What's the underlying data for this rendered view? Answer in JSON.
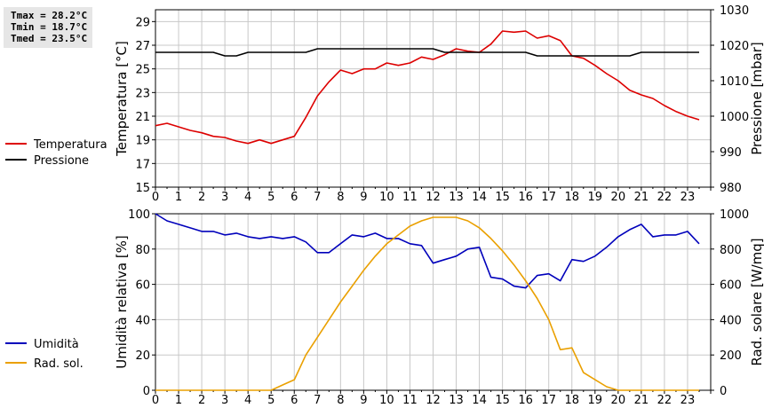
{
  "stats": {
    "tmax": "Tmax = 28.2°C",
    "tmin": "Tmin = 18.7°C",
    "tmed": "Tmed = 23.5°C"
  },
  "colors": {
    "temperature": "#dd0000",
    "pressure": "#000000",
    "humidity": "#0000bb",
    "radiation": "#eaa000",
    "grid": "#c8c8c8"
  },
  "chart_data": [
    {
      "type": "line",
      "x_ticks": [
        "0",
        "1",
        "2",
        "3",
        "4",
        "5",
        "6",
        "7",
        "8",
        "9",
        "10",
        "11",
        "12",
        "13",
        "14",
        "15",
        "16",
        "17",
        "18",
        "19",
        "20",
        "21",
        "22",
        "23"
      ],
      "xlim": [
        0,
        24
      ],
      "y_left": {
        "label": "Temperatura [°C]",
        "ticks": [
          "15",
          "17",
          "19",
          "21",
          "23",
          "25",
          "27",
          "29"
        ],
        "range": [
          15,
          30
        ]
      },
      "y_right": {
        "label": "Pressione [mbar]",
        "ticks": [
          "980",
          "990",
          "1000",
          "1010",
          "1020",
          "1030"
        ],
        "range": [
          980,
          1030
        ]
      },
      "grid": true,
      "legend_position": "left",
      "series": [
        {
          "name": "Temperatura",
          "axis": "left",
          "x": [
            0,
            0.5,
            1,
            1.5,
            2,
            2.5,
            3,
            3.5,
            4,
            4.5,
            5,
            5.5,
            6,
            6.5,
            7,
            7.5,
            8,
            8.5,
            9,
            9.5,
            10,
            10.5,
            11,
            11.5,
            12,
            12.5,
            13,
            13.5,
            14,
            14.5,
            15,
            15.5,
            16,
            16.5,
            17,
            17.5,
            18,
            18.5,
            19,
            19.5,
            20,
            20.5,
            21,
            21.5,
            22,
            22.5,
            23,
            23.5
          ],
          "y": [
            20.2,
            20.4,
            20.1,
            19.8,
            19.6,
            19.3,
            19.2,
            18.9,
            18.7,
            19.0,
            18.7,
            19.0,
            19.3,
            20.9,
            22.7,
            23.9,
            24.9,
            24.6,
            25.0,
            25.0,
            25.5,
            25.3,
            25.5,
            26.0,
            25.8,
            26.2,
            26.7,
            26.5,
            26.4,
            27.1,
            28.2,
            28.1,
            28.2,
            27.6,
            27.8,
            27.4,
            26.1,
            25.9,
            25.3,
            24.6,
            24.0,
            23.2,
            22.8,
            22.5,
            21.9,
            21.4,
            21.0,
            20.7
          ]
        },
        {
          "name": "Pressione",
          "axis": "right",
          "x": [
            0,
            1,
            2,
            2.5,
            3,
            3.5,
            4,
            5,
            6,
            6.5,
            7,
            8,
            9,
            10,
            11,
            12,
            12.5,
            13,
            14,
            15,
            16,
            16.5,
            17,
            18,
            19,
            20,
            20.5,
            21,
            22,
            23,
            23.5
          ],
          "y": [
            1018,
            1018,
            1018,
            1018,
            1017,
            1017,
            1018,
            1018,
            1018,
            1018,
            1019,
            1019,
            1019,
            1019,
            1019,
            1019,
            1018,
            1018,
            1018,
            1018,
            1018,
            1017,
            1017,
            1017,
            1017,
            1017,
            1017,
            1018,
            1018,
            1018,
            1018
          ]
        }
      ]
    },
    {
      "type": "line",
      "x_ticks": [
        "0",
        "1",
        "2",
        "3",
        "4",
        "5",
        "6",
        "7",
        "8",
        "9",
        "10",
        "11",
        "12",
        "13",
        "14",
        "15",
        "16",
        "17",
        "18",
        "19",
        "20",
        "21",
        "22",
        "23"
      ],
      "xlim": [
        0,
        24
      ],
      "y_left": {
        "label": "Umidità relativa [%]",
        "ticks": [
          "0",
          "20",
          "40",
          "60",
          "80",
          "100"
        ],
        "range": [
          0,
          100
        ]
      },
      "y_right": {
        "label": "Rad. solare [W/mq]",
        "ticks": [
          "0",
          "200",
          "400",
          "600",
          "800",
          "1000"
        ],
        "range": [
          0,
          1000
        ]
      },
      "grid": true,
      "legend_position": "left",
      "series": [
        {
          "name": "Umidità",
          "axis": "left",
          "x": [
            0,
            0.5,
            1,
            1.5,
            2,
            2.5,
            3,
            3.5,
            4,
            4.5,
            5,
            5.5,
            6,
            6.5,
            7,
            7.5,
            8,
            8.5,
            9,
            9.5,
            10,
            10.5,
            11,
            11.5,
            12,
            12.5,
            13,
            13.5,
            14,
            14.5,
            15,
            15.5,
            16,
            16.5,
            17,
            17.5,
            18,
            18.5,
            19,
            19.5,
            20,
            20.5,
            21,
            21.5,
            22,
            22.5,
            23,
            23.5
          ],
          "y": [
            100,
            96,
            94,
            92,
            90,
            90,
            88,
            89,
            87,
            86,
            87,
            86,
            87,
            84,
            78,
            78,
            83,
            88,
            87,
            89,
            86,
            86,
            83,
            82,
            72,
            74,
            76,
            80,
            81,
            64,
            63,
            59,
            58,
            65,
            66,
            62,
            74,
            73,
            76,
            81,
            87,
            91,
            94,
            87,
            88,
            88,
            90,
            83
          ]
        },
        {
          "name": "Rad. sol.",
          "axis": "right",
          "x": [
            0,
            1,
            2,
            3,
            4,
            5,
            5.5,
            6,
            6.5,
            7,
            7.5,
            8,
            8.5,
            9,
            9.5,
            10,
            10.5,
            11,
            11.5,
            12,
            12.5,
            13,
            13.5,
            14,
            14.5,
            15,
            15.5,
            16,
            16.5,
            17,
            17.5,
            18,
            18.5,
            19,
            19.5,
            20,
            21,
            22,
            23,
            23.5
          ],
          "y": [
            0,
            0,
            0,
            0,
            0,
            0,
            30,
            60,
            200,
            300,
            400,
            500,
            590,
            680,
            760,
            830,
            880,
            930,
            960,
            980,
            980,
            980,
            960,
            920,
            860,
            790,
            710,
            620,
            520,
            400,
            230,
            240,
            100,
            60,
            20,
            0,
            0,
            0,
            0,
            0
          ]
        }
      ]
    }
  ]
}
